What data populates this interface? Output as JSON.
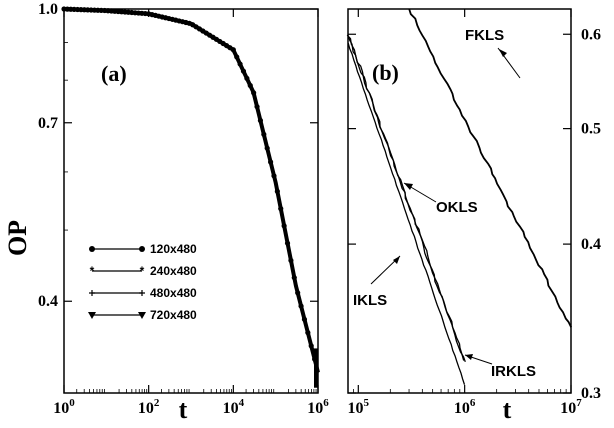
{
  "chart_data": [
    {
      "type": "line",
      "panel_label": "(a)",
      "xlabel": "t",
      "ylabel": "OP",
      "xscale": "log",
      "yscale": "log",
      "xlim": [
        1,
        1000000
      ],
      "ylim": [
        0.3,
        1.0
      ],
      "x_ticks": [
        {
          "base": "10",
          "exp": "0"
        },
        {
          "base": "10",
          "exp": "2"
        },
        {
          "base": "10",
          "exp": "4"
        },
        {
          "base": "10",
          "exp": "6"
        }
      ],
      "y_ticks": [
        "0.4",
        "0.7",
        "1.0"
      ],
      "legend_position": "left-middle",
      "series": [
        {
          "name": "120x480",
          "marker": "circle",
          "x": [
            1,
            10,
            100,
            1000,
            10000,
            30000,
            100000,
            300000,
            1000000
          ],
          "y": [
            1.0,
            0.995,
            0.985,
            0.955,
            0.88,
            0.77,
            0.58,
            0.42,
            0.32
          ]
        },
        {
          "name": "240x480",
          "marker": "star",
          "x": [
            1,
            10,
            100,
            1000,
            10000,
            30000,
            100000,
            300000,
            1000000
          ],
          "y": [
            1.0,
            0.995,
            0.985,
            0.955,
            0.88,
            0.77,
            0.58,
            0.42,
            0.32
          ]
        },
        {
          "name": "480x480",
          "marker": "plus",
          "x": [
            1,
            10,
            100,
            1000,
            10000,
            30000,
            100000,
            300000,
            1000000
          ],
          "y": [
            1.0,
            0.995,
            0.985,
            0.955,
            0.88,
            0.77,
            0.58,
            0.42,
            0.32
          ]
        },
        {
          "name": "720x480",
          "marker": "triangle-down",
          "x": [
            1,
            10,
            100,
            1000,
            10000,
            30000,
            100000,
            300000,
            1000000
          ],
          "y": [
            1.0,
            0.995,
            0.985,
            0.955,
            0.88,
            0.77,
            0.58,
            0.42,
            0.32
          ]
        }
      ]
    },
    {
      "type": "line",
      "panel_label": "(b)",
      "xlabel": "t",
      "xscale": "log",
      "yscale": "log",
      "xlim": [
        80000,
        10000000
      ],
      "ylim": [
        0.3,
        0.63
      ],
      "x_ticks": [
        {
          "base": "10",
          "exp": "5"
        },
        {
          "base": "10",
          "exp": "6"
        },
        {
          "base": "10",
          "exp": "7"
        }
      ],
      "y_ticks": [
        "0.3",
        "0.4",
        "0.5",
        "0.6"
      ],
      "y_axis_side": "right",
      "series": [
        {
          "name": "IKLS",
          "x": [
            80000,
            1000000
          ],
          "y": [
            0.59,
            0.305
          ]
        },
        {
          "name": "OKLS",
          "x": [
            80000,
            1000000
          ],
          "y": [
            0.6,
            0.32
          ]
        },
        {
          "name": "IRKLS",
          "x": [
            80000,
            1000000
          ],
          "y": [
            0.6,
            0.318
          ]
        },
        {
          "name": "FKLS",
          "x": [
            300000,
            10000000
          ],
          "y": [
            0.63,
            0.34
          ]
        }
      ],
      "annotations": [
        "IKLS",
        "OKLS",
        "IRKLS",
        "FKLS"
      ]
    }
  ]
}
